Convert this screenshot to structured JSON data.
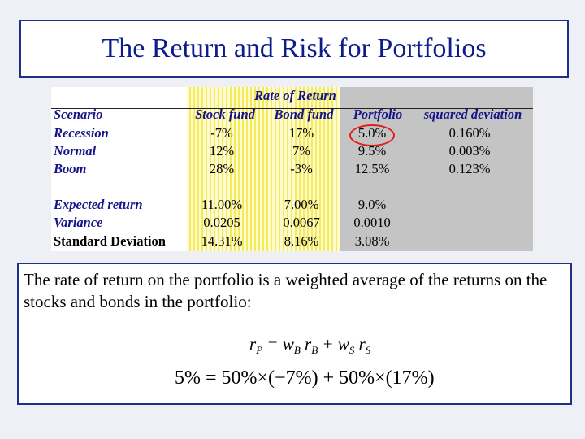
{
  "title": "The Return and Risk for Portfolios",
  "table": {
    "header_group": "Rate of Return",
    "columns": [
      "Scenario",
      "Stock fund",
      "Bond fund",
      "Portfolio",
      "squared deviation"
    ],
    "scenarios": [
      {
        "label": "Recession",
        "stock": "-7%",
        "bond": "17%",
        "portfolio": "5.0%",
        "sqdev": "0.160%"
      },
      {
        "label": "Normal",
        "stock": "12%",
        "bond": "7%",
        "portfolio": "9.5%",
        "sqdev": "0.003%"
      },
      {
        "label": "Boom",
        "stock": "28%",
        "bond": "-3%",
        "portfolio": "12.5%",
        "sqdev": "0.123%"
      }
    ],
    "summary": [
      {
        "label": "Expected return",
        "stock": "11.00%",
        "bond": "7.00%",
        "portfolio": "9.0%"
      },
      {
        "label": "Variance",
        "stock": "0.0205",
        "bond": "0.0067",
        "portfolio": "0.0010"
      },
      {
        "label": "Standard Deviation",
        "stock": "14.31%",
        "bond": "8.16%",
        "portfolio": "3.08%"
      }
    ],
    "highlight_color": "#e01f1f"
  },
  "explanation": "The rate of return on the portfolio is a weighted average of the returns on the stocks and bonds in the portfolio:",
  "formula_general": {
    "r": "r",
    "P": "P",
    "eq": " = ",
    "w": "w",
    "B": "B",
    "plus": " + ",
    "S": "S"
  },
  "formula_example": "5% = 50%×(−7%) + 50%×(17%)"
}
